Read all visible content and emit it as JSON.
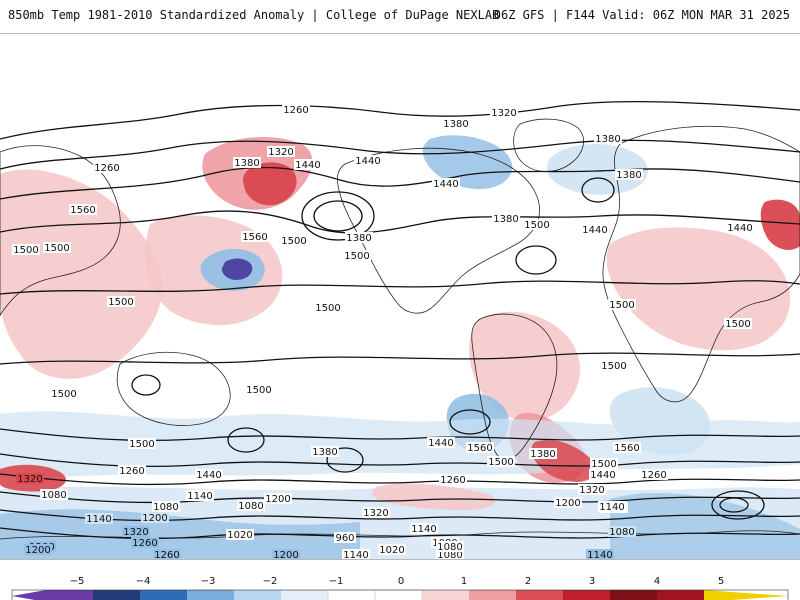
{
  "header": {
    "title_left": "850mb Temp 1981-2010 Standardized Anomaly | College of DuPage NEXLAB",
    "title_right": "06Z GFS | F144 Valid: 06Z MON MAR 31 2025"
  },
  "colors": {
    "ocean": "#ffffff",
    "map_border": "#b8b8b8",
    "coast": "#111111",
    "contour": "#111111",
    "warm_light": "#f5c6c7",
    "warm_mid": "#ec9a9e",
    "warm_strong": "#d9474f",
    "warm_extreme": "#a01622",
    "cold_light": "#cfe3f3",
    "cold_mid": "#95bfe4",
    "cold_strong": "#3d7ec8",
    "cold_extreme": "#4b3fa0"
  },
  "map": {
    "contour_labels": [
      {
        "text": "1260",
        "name": "contour-label"
      },
      {
        "text": "1320",
        "name": "contour-label"
      },
      {
        "text": "1380",
        "name": "contour-label"
      },
      {
        "text": "1380",
        "name": "contour-label"
      },
      {
        "text": "1260",
        "name": "contour-label"
      },
      {
        "text": "1320",
        "name": "contour-label"
      },
      {
        "text": "1380",
        "name": "contour-label"
      },
      {
        "text": "1440",
        "name": "contour-label"
      },
      {
        "text": "1440",
        "name": "contour-label"
      },
      {
        "text": "1440",
        "name": "contour-label"
      },
      {
        "text": "1560",
        "name": "contour-label"
      },
      {
        "text": "1380",
        "name": "contour-label"
      },
      {
        "text": "1380",
        "name": "contour-label"
      },
      {
        "text": "1500",
        "name": "contour-label"
      },
      {
        "text": "1440",
        "name": "contour-label"
      },
      {
        "text": "1380",
        "name": "contour-label"
      },
      {
        "text": "1440",
        "name": "contour-label"
      },
      {
        "text": "1500",
        "name": "contour-label"
      },
      {
        "text": "1560",
        "name": "contour-label"
      },
      {
        "text": "1500",
        "name": "contour-label"
      },
      {
        "text": "1500",
        "name": "contour-label"
      },
      {
        "text": "1500",
        "name": "contour-label"
      },
      {
        "text": "1500",
        "name": "contour-label"
      },
      {
        "text": "1500",
        "name": "contour-label"
      },
      {
        "text": "1500",
        "name": "contour-label"
      },
      {
        "text": "1500",
        "name": "contour-label"
      },
      {
        "text": "1500",
        "name": "contour-label"
      },
      {
        "text": "1500",
        "name": "contour-label"
      },
      {
        "text": "1500",
        "name": "contour-label"
      },
      {
        "text": "1500",
        "name": "contour-label"
      },
      {
        "text": "1440",
        "name": "contour-label"
      },
      {
        "text": "1380",
        "name": "contour-label"
      },
      {
        "text": "1560",
        "name": "contour-label"
      },
      {
        "text": "1500",
        "name": "contour-label"
      },
      {
        "text": "1560",
        "name": "contour-label"
      },
      {
        "text": "1380",
        "name": "contour-label"
      },
      {
        "text": "1500",
        "name": "contour-label"
      },
      {
        "text": "1440",
        "name": "contour-label"
      },
      {
        "text": "1260",
        "name": "contour-label"
      },
      {
        "text": "1320",
        "name": "contour-label"
      },
      {
        "text": "1260",
        "name": "contour-label"
      },
      {
        "text": "1440",
        "name": "contour-label"
      },
      {
        "text": "1260",
        "name": "contour-label"
      },
      {
        "text": "1200",
        "name": "contour-label"
      },
      {
        "text": "1140",
        "name": "contour-label"
      },
      {
        "text": "1320",
        "name": "contour-label"
      },
      {
        "text": "1320",
        "name": "contour-label"
      },
      {
        "text": "1080",
        "name": "contour-label"
      },
      {
        "text": "1140",
        "name": "contour-label"
      },
      {
        "text": "1080",
        "name": "contour-label"
      },
      {
        "text": "1140",
        "name": "contour-label"
      },
      {
        "text": "1200",
        "name": "contour-label"
      },
      {
        "text": "1080",
        "name": "contour-label"
      },
      {
        "text": "1200",
        "name": "contour-label"
      },
      {
        "text": "1140",
        "name": "contour-label"
      },
      {
        "text": "1140",
        "name": "contour-label"
      },
      {
        "text": "1080",
        "name": "contour-label"
      },
      {
        "text": "1320",
        "name": "contour-label"
      },
      {
        "text": "1200",
        "name": "contour-label"
      },
      {
        "text": "1260",
        "name": "contour-label"
      },
      {
        "text": "1020",
        "name": "contour-label"
      },
      {
        "text": "960",
        "name": "contour-label"
      },
      {
        "text": "1140",
        "name": "contour-label"
      },
      {
        "text": "1080",
        "name": "contour-label"
      },
      {
        "text": "1080",
        "name": "contour-label"
      },
      {
        "text": "1200",
        "name": "contour-label"
      },
      {
        "text": "1260",
        "name": "contour-label"
      },
      {
        "text": "1200",
        "name": "contour-label"
      },
      {
        "text": "1140",
        "name": "contour-label"
      },
      {
        "text": "1020",
        "name": "contour-label"
      },
      {
        "text": "1080",
        "name": "contour-label"
      },
      {
        "text": "1140",
        "name": "contour-label"
      }
    ]
  },
  "colorbar": {
    "ticks": [
      -5,
      -4,
      -3,
      -2,
      -1,
      0,
      1,
      2,
      3,
      4,
      5
    ],
    "tick_labels": [
      "−5",
      "−4",
      "−3",
      "−2",
      "−1",
      "0",
      "1",
      "2",
      "3",
      "4",
      "5"
    ],
    "colors": [
      "#6a3aa5",
      "#243c7a",
      "#2e6db5",
      "#7aaedd",
      "#b9d6ef",
      "#e3eef8",
      "#ffffff",
      "#ffffff",
      "#f6d4d4",
      "#ef9ea2",
      "#db4e55",
      "#bf1f2a",
      "#7e0f16",
      "#f0d000"
    ]
  }
}
